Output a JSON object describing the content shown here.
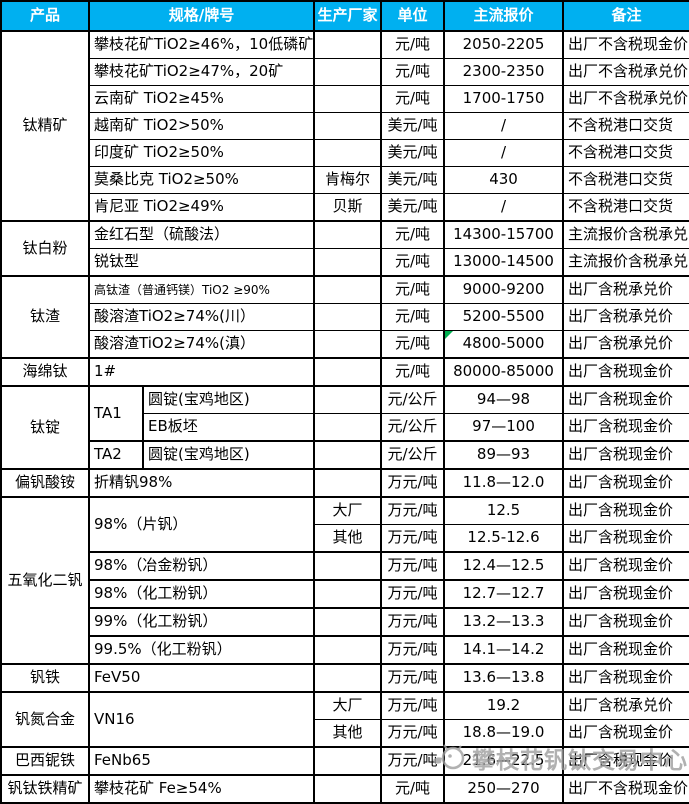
{
  "table": {
    "columns": [
      "产品",
      "规格/牌号",
      "生产厂家",
      "单位",
      "主流报价",
      "备注"
    ]
  },
  "colors": {
    "header_bg": "#00B0F0",
    "header_text": "#FFFFFF",
    "border": "#000000",
    "marker_green": "#00B050",
    "watermark_gray": "#A0A0A0"
  },
  "groups": [
    {
      "product": "钛精矿",
      "rows": [
        {
          "spec": "攀枝花矿TiO2≥46%，10低磷矿",
          "vendor": "",
          "unit": "元/吨",
          "price": "2050-2205",
          "note": "出厂不含税现金价"
        },
        {
          "spec": "攀枝花矿TiO2≥47%，20矿",
          "vendor": "",
          "unit": "元/吨",
          "price": "2300-2350",
          "note": "出厂不含税承兑价",
          "thin": true
        },
        {
          "spec": "云南矿 TiO2≥45%",
          "vendor": "",
          "unit": "元/吨",
          "price": "1700-1750",
          "note": "出厂不含税承兑价",
          "thin": true
        },
        {
          "spec": "越南矿 TiO2>50%",
          "vendor": "",
          "unit": "美元/吨",
          "price": "/",
          "note": "不含税港口交货",
          "thin": true
        },
        {
          "spec": "印度矿 TiO2≥50%",
          "vendor": "",
          "unit": "美元/吨",
          "price": "/",
          "note": "不含税港口交货",
          "thin": true
        },
        {
          "spec": "莫桑比克 TiO2≥50%",
          "vendor": "肯梅尔",
          "unit": "美元/吨",
          "price": "430",
          "note": "不含税港口交货",
          "thin": true
        },
        {
          "spec": "肯尼亚 TiO2≥49%",
          "vendor": "贝斯",
          "unit": "美元/吨",
          "price": "/",
          "note": "不含税港口交货",
          "thin": true
        }
      ]
    },
    {
      "product": "钛白粉",
      "rows": [
        {
          "spec": "金红石型（硫酸法）",
          "vendor": "",
          "unit": "元/吨",
          "price": "14300-15700",
          "note": "主流报价含税承兑"
        },
        {
          "spec": "锐钛型",
          "vendor": "",
          "unit": "元/吨",
          "price": "13000-14500",
          "note": "主流报价含税承兑",
          "thin": true
        }
      ]
    },
    {
      "product": "钛渣",
      "rows": [
        {
          "spec": "高钛渣（普通钙镁）TiO2 ≥90%",
          "small": true,
          "vendor": "",
          "unit": "元/吨",
          "price": "9000-9200",
          "note": "出厂含税承兑价"
        },
        {
          "spec": "酸溶渣TiO2≥74%(川）",
          "vendor": "",
          "unit": "元/吨",
          "price": "5200-5500",
          "note": "出厂含税承兑价",
          "thin": true
        },
        {
          "spec": "酸溶渣TiO2≥74%(滇）",
          "vendor": "",
          "unit": "元/吨",
          "price": "4800-5000",
          "note": "出厂含税承兑价",
          "thin": true,
          "mark": true
        }
      ]
    },
    {
      "product": "海绵钛",
      "rows": [
        {
          "spec": "1#",
          "vendor": "",
          "unit": "元/吨",
          "price": "80000-85000",
          "note": "出厂含税现金价"
        }
      ]
    },
    {
      "product": "钛锭",
      "rows": [
        {
          "specA": "TA1",
          "specARowspan": 2,
          "spec": "圆锭(宝鸡地区)",
          "specColspan": 1,
          "vendor": "",
          "unit": "元/公斤",
          "price": "94—98",
          "note": "出厂含税现金价"
        },
        {
          "spec": "EB板坯",
          "specColspan": 1,
          "vendor": "",
          "unit": "元/公斤",
          "price": "97—100",
          "note": "出厂含税现金价",
          "thin": true
        },
        {
          "specA": "TA2",
          "spec": "圆锭(宝鸡地区)",
          "specColspan": 1,
          "vendor": "",
          "unit": "元/公斤",
          "price": "89—93",
          "note": "出厂含税现金价"
        }
      ]
    },
    {
      "product": "偏钒酸铵",
      "rows": [
        {
          "spec": "折精钒98%",
          "vendor": "",
          "unit": "万元/吨",
          "price": "11.8—12.0",
          "note": "出厂含税现金价"
        }
      ]
    },
    {
      "product": "五氧化二钒",
      "rows": [
        {
          "spec": "98%（片钒）",
          "specRowspan": 2,
          "vendor": "大厂",
          "unit": "万元/吨",
          "price": "12.5",
          "note": "出厂含税现金价"
        },
        {
          "vendor": "其他",
          "unit": "万元/吨",
          "price": "12.5-12.6",
          "note": "出厂含税现金价",
          "thin": true
        },
        {
          "spec": "98%（冶金粉钒）",
          "vendor": "",
          "unit": "万元/吨",
          "price": "12.4—12.5",
          "note": "出厂含税现金价"
        },
        {
          "spec": "98%（化工粉钒）",
          "vendor": "",
          "unit": "万元/吨",
          "price": "12.7—12.7",
          "note": "出厂含税现金价"
        },
        {
          "spec": "99%（化工粉钒）",
          "vendor": "",
          "unit": "万元/吨",
          "price": "13.2—13.3",
          "note": "出厂含税现金价"
        },
        {
          "spec": "99.5%（化工粉钒）",
          "vendor": "",
          "unit": "万元/吨",
          "price": "14.1—14.2",
          "note": "出厂含税现金价"
        }
      ]
    },
    {
      "product": "钒铁",
      "rows": [
        {
          "spec": "FeV50",
          "vendor": "",
          "unit": "万元/吨",
          "price": "13.6—13.8",
          "note": "出厂含税现金价"
        }
      ]
    },
    {
      "product": "钒氮合金",
      "rows": [
        {
          "spec": "VN16",
          "specRowspan": 2,
          "vendor": "大厂",
          "unit": "万元/吨",
          "price": "19.2",
          "note": "出厂含税承兑价"
        },
        {
          "vendor": "其他",
          "unit": "万元/吨",
          "price": "18.8—19.0",
          "note": "出厂含税现金价",
          "thin": true
        }
      ]
    },
    {
      "product": "巴西铌铁",
      "rows": [
        {
          "spec": "FeNb65",
          "vendor": "",
          "unit": "万元/吨",
          "price": "21.6—22.5",
          "note": "出厂含税现金价"
        }
      ]
    },
    {
      "product": "钒钛铁精矿",
      "rows": [
        {
          "spec": "攀枝花矿 Fe≥54%",
          "vendor": "",
          "unit": "元/吨",
          "price": "250—270",
          "note": "出厂不含税现金价"
        }
      ]
    }
  ],
  "watermark": {
    "text": "攀枝花钒钛交易中心"
  }
}
